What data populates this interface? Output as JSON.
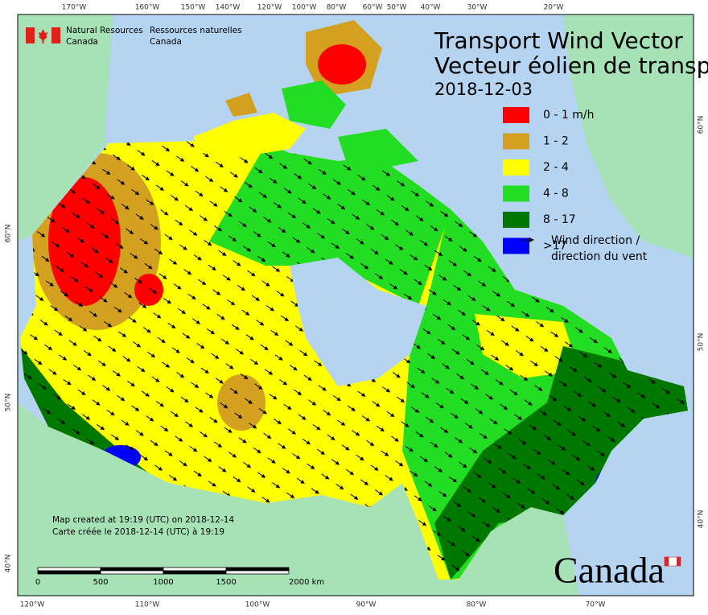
{
  "header": {
    "agency_en": [
      "Natural Resources",
      "Canada"
    ],
    "agency_fr": [
      "Ressources naturelles",
      "Canada"
    ]
  },
  "title": {
    "line1": "Transport Wind Vector",
    "line2": "Vecteur éolien de transp",
    "date": "2018-12-03"
  },
  "legend": {
    "items": [
      {
        "label": "0 - 1 m/h",
        "color": "#ff0000"
      },
      {
        "label": "1 - 2",
        "color": "#d4a020"
      },
      {
        "label": "2 - 4",
        "color": "#ffff00"
      },
      {
        "label": "4 - 8",
        "color": "#22dd22"
      },
      {
        "label": "8 - 17",
        "color": "#007800"
      },
      {
        "label": ">17",
        "color": "#0000ff"
      }
    ],
    "arrow_label": [
      "Wind direction /",
      "direction du vent"
    ]
  },
  "graticule": {
    "top": [
      "170°W",
      "160°W",
      "150°W",
      "140°W",
      "120°W",
      "100°W",
      "80°W",
      "60°W",
      "50°W",
      "40°W",
      "30°W",
      "20°W"
    ],
    "bottom": [
      "120°W",
      "110°W",
      "100°W",
      "90°W",
      "80°W",
      "70°W"
    ],
    "left": [
      "60°N",
      "50°N",
      "40°N"
    ],
    "right": [
      "60°N",
      "50°N",
      "40°N"
    ]
  },
  "credits": [
    "Map created at 19:19 (UTC) on 2018-12-14",
    "Carte créée le 2018-12-14 (UTC) à 19:19"
  ],
  "scale_bar": {
    "labels": [
      "0",
      "500",
      "1000",
      "1500",
      "2000 km"
    ]
  },
  "wordmark": "Canada"
}
